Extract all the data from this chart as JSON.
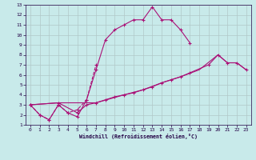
{
  "xlabel": "Windchill (Refroidissement éolien,°C)",
  "background_color": "#c8eaea",
  "grid_color": "#b0c8c8",
  "line_color": "#aa1177",
  "xlim": [
    -0.5,
    23.5
  ],
  "ylim": [
    1,
    13
  ],
  "xticks": [
    0,
    1,
    2,
    3,
    4,
    5,
    6,
    7,
    8,
    9,
    10,
    11,
    12,
    13,
    14,
    15,
    16,
    17,
    18,
    19,
    20,
    21,
    22,
    23
  ],
  "yticks": [
    1,
    2,
    3,
    4,
    5,
    6,
    7,
    8,
    9,
    10,
    11,
    12,
    13
  ],
  "s1_x": [
    0,
    1,
    2,
    3,
    4,
    5,
    6,
    7,
    8,
    9,
    10,
    11,
    12,
    13,
    14,
    15,
    16,
    17
  ],
  "s1_y": [
    3,
    2,
    1.5,
    3,
    2.2,
    1.8,
    3.5,
    6.5,
    9.5,
    10.5,
    11,
    11.5,
    11.5,
    12.8,
    11.5,
    11.5,
    10.5,
    9.2
  ],
  "s2_x": [
    0,
    1,
    2,
    3,
    4,
    5,
    6,
    7
  ],
  "s2_y": [
    3,
    2,
    1.5,
    3,
    2.2,
    2.5,
    3.5,
    7
  ],
  "s3_x": [
    0,
    3,
    5,
    6,
    7,
    8,
    9,
    10,
    11,
    12,
    13,
    14,
    15,
    16,
    17,
    19,
    20,
    21,
    22,
    23
  ],
  "s3_y": [
    3,
    3.2,
    2.2,
    3.0,
    3.2,
    3.5,
    3.8,
    4.0,
    4.2,
    4.5,
    4.8,
    5.2,
    5.5,
    5.8,
    6.2,
    7.0,
    8.0,
    7.2,
    7.2,
    6.5
  ],
  "s4_x": [
    0,
    3,
    7,
    10,
    12,
    14,
    16,
    18,
    20,
    21,
    22,
    23
  ],
  "s4_y": [
    3,
    3.2,
    3.2,
    4.0,
    4.5,
    5.2,
    5.8,
    6.5,
    8.0,
    7.2,
    7.2,
    6.5
  ]
}
